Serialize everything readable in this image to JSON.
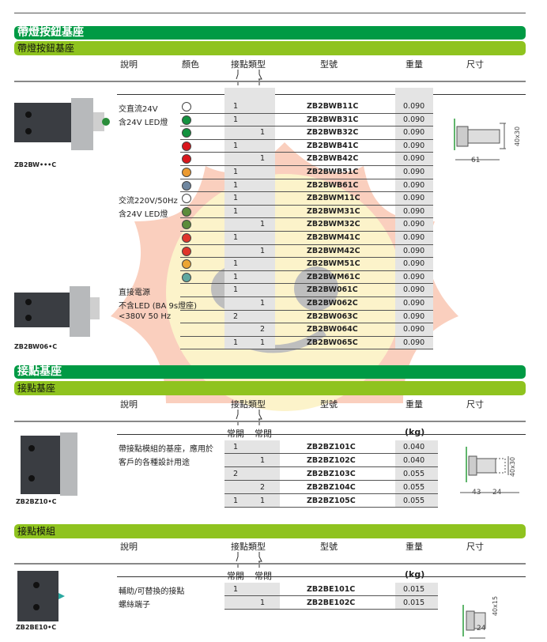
{
  "headers": {
    "desc": "說明",
    "color": "顏色",
    "contact_type": "接點類型",
    "model": "型號",
    "weight": "重量",
    "size": "尺寸",
    "no": "常開",
    "nc": "常閉",
    "kg": "(kg)"
  },
  "section1": {
    "title": "帶燈按鈕基座",
    "subtitle": "帶燈按鈕基座",
    "image_captions": [
      "ZB2BW•••C",
      "ZB2BW06•C"
    ],
    "descriptions": [
      {
        "row": 0,
        "text": "交直流24V"
      },
      {
        "row": 1,
        "text": "含24V LED燈"
      },
      {
        "row": 7,
        "text": "交流220V/50Hz"
      },
      {
        "row": 8,
        "text": "含24V LED燈"
      },
      {
        "row": 14,
        "text": "直接電源"
      },
      {
        "row": 15,
        "text": "不含LED (BA 9s燈座)"
      },
      {
        "row": 16,
        "text": "<380V 50 Hz"
      }
    ],
    "rows": [
      {
        "color": "#ffffff",
        "no": "1",
        "nc": "",
        "model": "ZB2BWB11C",
        "weight": "0.090"
      },
      {
        "color": "#13923f",
        "no": "1",
        "nc": "",
        "model": "ZB2BWB31C",
        "weight": "0.090"
      },
      {
        "color": "#13923f",
        "no": "",
        "nc": "1",
        "model": "ZB2BWB32C",
        "weight": "0.090"
      },
      {
        "color": "#d9161c",
        "no": "1",
        "nc": "",
        "model": "ZB2BWB41C",
        "weight": "0.090"
      },
      {
        "color": "#d9161c",
        "no": "",
        "nc": "1",
        "model": "ZB2BWB42C",
        "weight": "0.090"
      },
      {
        "color": "#ec9a30",
        "no": "1",
        "nc": "",
        "model": "ZB2BWB51C",
        "weight": "0.090"
      },
      {
        "color": "#6f87a0",
        "no": "1",
        "nc": "",
        "model": "ZB2BWB61C",
        "weight": "0.090"
      },
      {
        "color": "#ffffff",
        "no": "1",
        "nc": "",
        "model": "ZB2BWM11C",
        "weight": "0.090"
      },
      {
        "color": "#5b8c3a",
        "no": "1",
        "nc": "",
        "model": "ZB2BWM31C",
        "weight": "0.090"
      },
      {
        "color": "#5b8c3a",
        "no": "",
        "nc": "1",
        "model": "ZB2BWM32C",
        "weight": "0.090"
      },
      {
        "color": "#e0352a",
        "no": "1",
        "nc": "",
        "model": "ZB2BWM41C",
        "weight": "0.090"
      },
      {
        "color": "#e0352a",
        "no": "",
        "nc": "1",
        "model": "ZB2BWM42C",
        "weight": "0.090"
      },
      {
        "color": "#eca532",
        "no": "1",
        "nc": "",
        "model": "ZB2BWM51C",
        "weight": "0.090"
      },
      {
        "color": "#5fa8a0",
        "no": "1",
        "nc": "",
        "model": "ZB2BWM61C",
        "weight": "0.090"
      },
      {
        "color": "",
        "no": "1",
        "nc": "",
        "model": "ZB2BW061C",
        "weight": "0.090"
      },
      {
        "color": "",
        "no": "",
        "nc": "1",
        "model": "ZB2BW062C",
        "weight": "0.090"
      },
      {
        "color": "",
        "no": "2",
        "nc": "",
        "model": "ZB2BW063C",
        "weight": "0.090"
      },
      {
        "color": "",
        "no": "",
        "nc": "2",
        "model": "ZB2BW064C",
        "weight": "0.090"
      },
      {
        "color": "",
        "no": "1",
        "nc": "1",
        "model": "ZB2BW065C",
        "weight": "0.090"
      }
    ],
    "dims": {
      "width": "61",
      "height": "40x30"
    }
  },
  "section2": {
    "title": "接點基座",
    "subtitle": "接點基座",
    "image_caption": "ZB2BZ10•C",
    "descriptions": [
      {
        "row": 0,
        "text": "帶接點模組的基座，應用於"
      },
      {
        "row": 1,
        "text": "客戶的各種設計用途"
      }
    ],
    "rows": [
      {
        "no": "1",
        "nc": "",
        "model": "ZB2BZ101C",
        "weight": "0.040"
      },
      {
        "no": "",
        "nc": "1",
        "model": "ZB2BZ102C",
        "weight": "0.040"
      },
      {
        "no": "2",
        "nc": "",
        "model": "ZB2BZ103C",
        "weight": "0.055"
      },
      {
        "no": "",
        "nc": "2",
        "model": "ZB2BZ104C",
        "weight": "0.055"
      },
      {
        "no": "1",
        "nc": "1",
        "model": "ZB2BZ105C",
        "weight": "0.055"
      }
    ],
    "dims": {
      "w1": "43",
      "w2": "24",
      "height": "40x30"
    }
  },
  "section3": {
    "subtitle": "接點模組",
    "image_caption": "ZB2BE10•C",
    "descriptions": [
      {
        "row": 0,
        "text": "輔助/可替換的接點"
      },
      {
        "row": 1,
        "text": "螺絲端子"
      }
    ],
    "rows": [
      {
        "no": "1",
        "nc": "",
        "model": "ZB2BE101C",
        "weight": "0.015"
      },
      {
        "no": "",
        "nc": "1",
        "model": "ZB2BE102C",
        "weight": "0.015"
      }
    ],
    "dims": {
      "width": "24",
      "height": "40x15"
    }
  }
}
